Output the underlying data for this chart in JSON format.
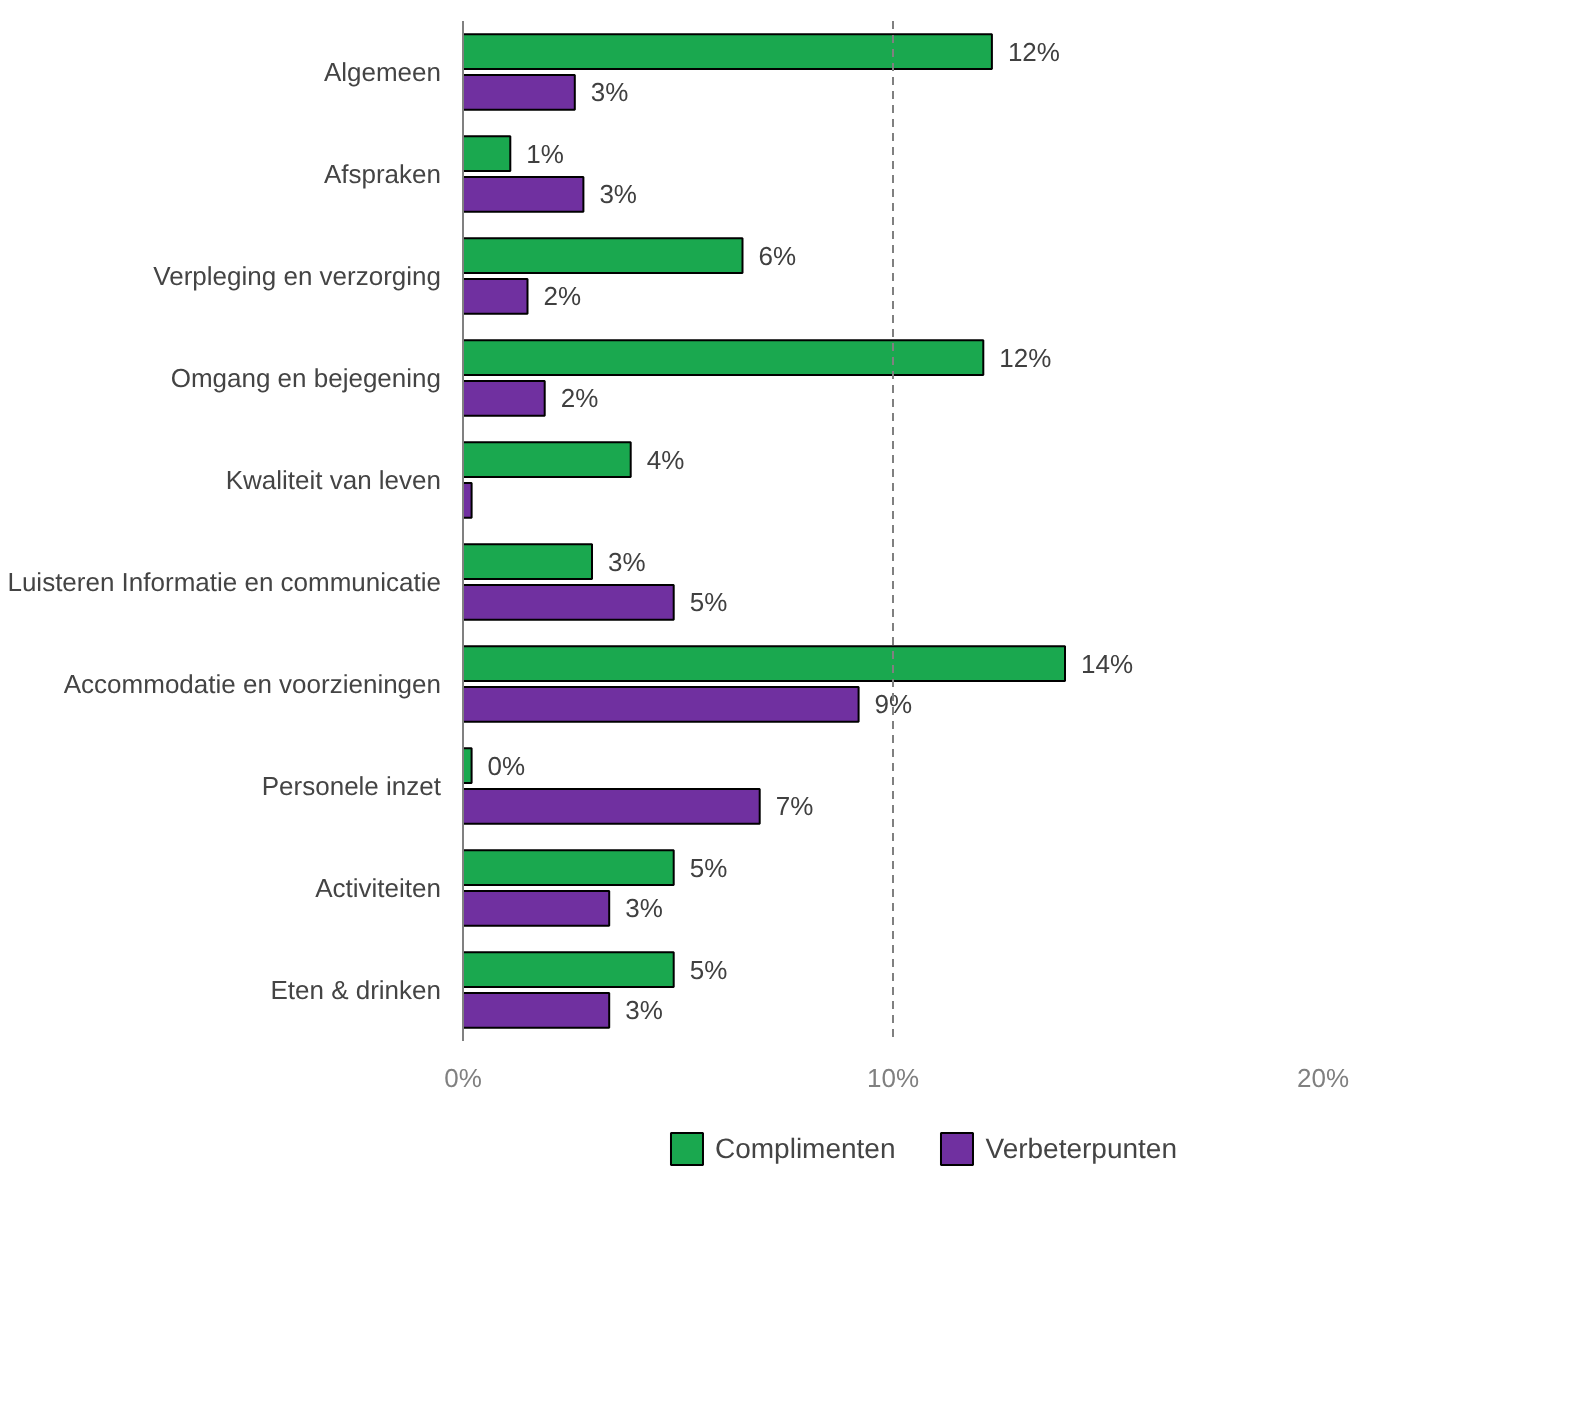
{
  "chart_data": {
    "type": "bar",
    "orientation": "horizontal",
    "categories": [
      "Algemeen",
      "Afspraken",
      "Verpleging en verzorging",
      "Omgang en bejegening",
      "Kwaliteit van leven",
      "Luisteren Informatie en communicatie",
      "Accommodatie en voorzieningen",
      "Personele inzet",
      "Activiteiten",
      "Eten & drinken"
    ],
    "series": [
      {
        "name": "Complimenten",
        "color": "#1aa84f",
        "values": [
          12.3,
          1.1,
          6.5,
          12.1,
          3.9,
          3.0,
          14.0,
          0.2,
          4.9,
          4.9
        ],
        "value_labels": [
          "12%",
          "1%",
          "6%",
          "12%",
          "4%",
          "3%",
          "14%",
          "0%",
          "5%",
          "5%"
        ]
      },
      {
        "name": "Verbeterpunten",
        "color": "#7030a0",
        "values": [
          2.6,
          2.8,
          1.5,
          1.9,
          0.2,
          4.9,
          9.2,
          6.9,
          3.4,
          3.4
        ],
        "value_labels": [
          "3%",
          "3%",
          "2%",
          "2%",
          null,
          "5%",
          "9%",
          "7%",
          "3%",
          "3%"
        ]
      }
    ],
    "xlim": [
      0,
      20
    ],
    "xticks": [
      {
        "value": 0,
        "label": "0%"
      },
      {
        "value": 10,
        "label": "10%"
      },
      {
        "value": 20,
        "label": "20%"
      }
    ],
    "ref_lines": [
      {
        "axis": "x",
        "value": 10,
        "line_style": "dashed",
        "color": "#808080"
      }
    ],
    "grid": false,
    "legend": "bottom"
  }
}
